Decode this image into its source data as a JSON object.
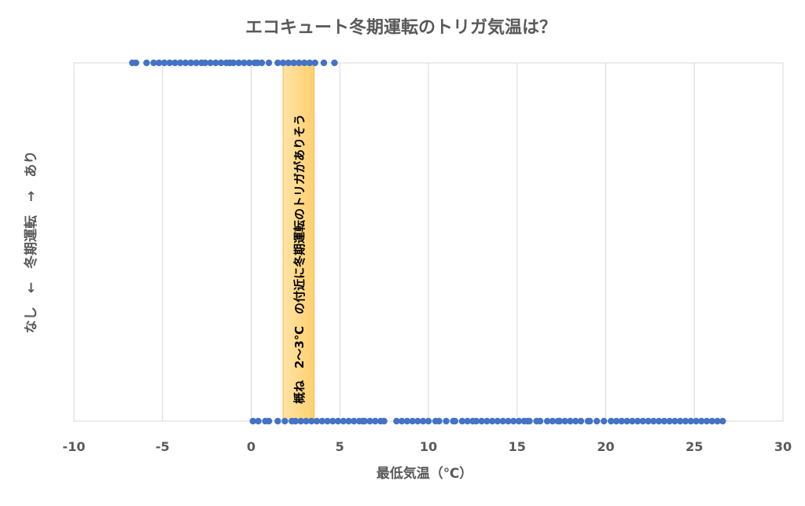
{
  "chart_data": {
    "type": "scatter",
    "title": "エコキュート冬期運転のトリガ気温は？",
    "xlabel": "最低気温（℃）",
    "ylabel": "なし　←　冬期運転　→　あり",
    "xlim": [
      -10,
      30
    ],
    "ylim": [
      0,
      1
    ],
    "xticks": [
      "-10",
      "-5",
      "0",
      "5",
      "10",
      "15",
      "20",
      "25",
      "30"
    ],
    "grid": "vertical",
    "marker_color": "#4472C4",
    "series": [
      {
        "y": 1,
        "x": [
          -6.7,
          -6.5,
          -5.9,
          -5.5,
          -5.2,
          -4.9,
          -4.6,
          -4.3,
          -4.0,
          -3.7,
          -3.4,
          -3.1,
          -2.8,
          -2.6,
          -2.3,
          -2.0,
          -1.7,
          -1.4,
          -1.2,
          -1.0,
          -0.7,
          -0.4,
          -0.1,
          0.2,
          0.35,
          0.6,
          1.0,
          1.5,
          1.8,
          2.1,
          2.4,
          2.7,
          3.0,
          3.3,
          3.6,
          4.1,
          4.7
        ]
      },
      {
        "y": 0,
        "x": [
          0.1,
          0.4,
          0.8,
          1.0,
          1.5,
          1.9,
          2.3,
          2.5,
          2.8,
          3.1,
          3.4,
          3.7,
          4.0,
          4.3,
          4.6,
          4.9,
          5.2,
          5.5,
          5.8,
          6.1,
          6.3,
          6.4,
          6.7,
          7.0,
          7.3,
          7.5,
          8.2,
          8.5,
          8.8,
          9.1,
          9.4,
          9.7,
          10.0,
          10.4,
          10.6,
          11.0,
          11.4,
          11.5,
          11.9,
          12.2,
          12.5,
          12.7,
          13.0,
          13.3,
          13.6,
          13.9,
          14.2,
          14.5,
          14.8,
          15.1,
          15.4,
          15.6,
          15.7,
          16.1,
          16.3,
          16.7,
          17.0,
          17.3,
          17.4,
          17.7,
          18.0,
          18.3,
          18.6,
          19.0,
          19.1,
          19.5,
          19.9,
          20.3,
          20.6,
          20.9,
          21.2,
          21.5,
          21.8,
          22.1,
          22.4,
          22.7,
          23.0,
          23.3,
          23.6,
          23.9,
          24.2,
          24.5,
          24.8,
          25.1,
          25.4,
          25.7,
          26.0,
          26.3,
          26.6
        ]
      }
    ],
    "annotation": {
      "text": "概ね　2～3℃　の付近に冬期運転のトリガがありそう",
      "x_range": [
        1.8,
        3.55
      ],
      "color": "#FFD67F"
    }
  }
}
